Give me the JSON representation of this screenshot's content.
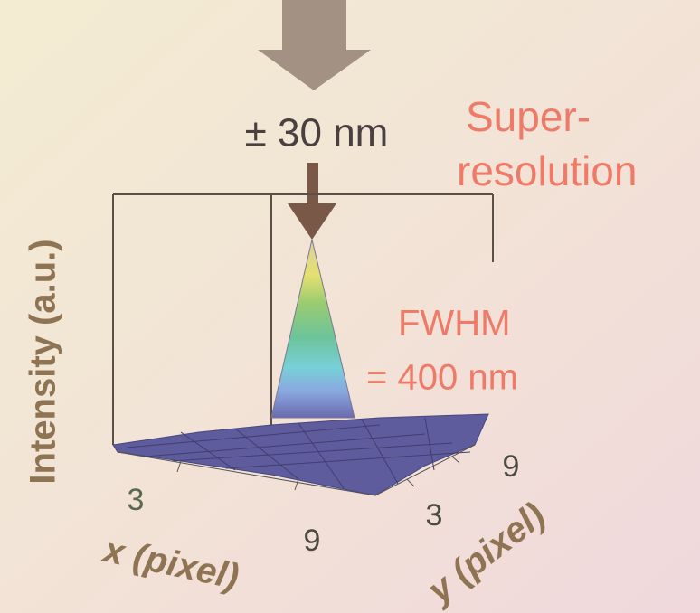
{
  "slide": {
    "uncertainty": "± 30 nm",
    "headline": [
      "Super-",
      "resolution"
    ],
    "fwhm": [
      "FWHM",
      "= 400 nm"
    ],
    "z_axis_label": "Intensity (a.u.)",
    "x_axis": {
      "label": "x (pixel)",
      "ticks": [
        "3",
        "9"
      ]
    },
    "y_axis": {
      "label": "y (pixel)",
      "ticks": [
        "3",
        "9"
      ]
    }
  }
}
